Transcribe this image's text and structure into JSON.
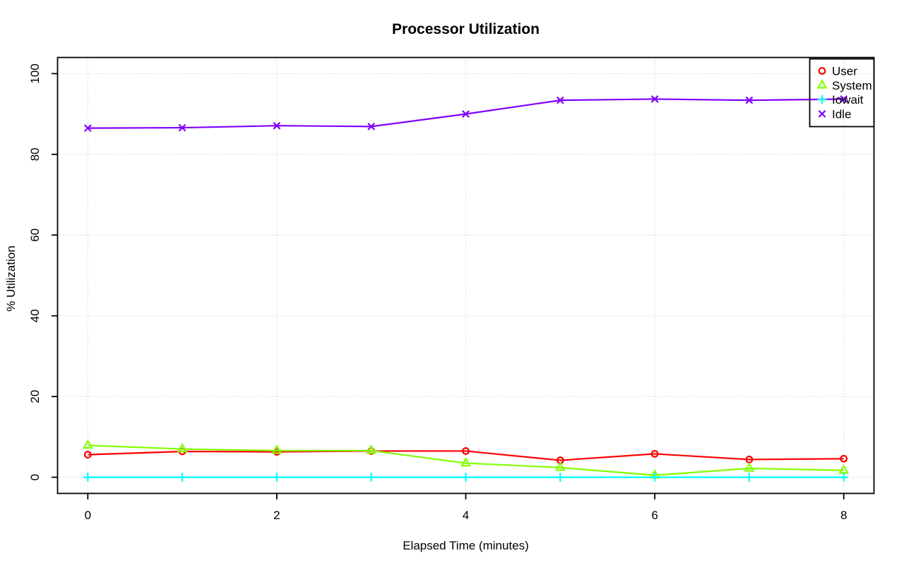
{
  "chart_data": {
    "type": "line",
    "title": "Processor Utilization",
    "xlabel": "Elapsed Time (minutes)",
    "ylabel": "% Utilization",
    "x": [
      0,
      1,
      2,
      3,
      4,
      5,
      6,
      7,
      8
    ],
    "xlim": [
      0,
      8
    ],
    "ylim": [
      0,
      100
    ],
    "xticks": [
      "0",
      "2",
      "4",
      "6",
      "8"
    ],
    "yticks": [
      "0",
      "20",
      "40",
      "60",
      "80",
      "100"
    ],
    "grid": "dotted",
    "legend_position": "top-right",
    "series": [
      {
        "name": "User",
        "color": "#FF0000",
        "marker": "circle",
        "values": [
          5.6,
          6.4,
          6.3,
          6.5,
          6.5,
          4.2,
          5.8,
          4.4,
          4.6
        ]
      },
      {
        "name": "System",
        "color": "#80FF00",
        "marker": "triangle",
        "values": [
          7.9,
          7.0,
          6.6,
          6.6,
          3.5,
          2.4,
          0.5,
          2.2,
          1.7
        ]
      },
      {
        "name": "Iowait",
        "color": "#00FFFF",
        "marker": "plus",
        "values": [
          0,
          0,
          0,
          0,
          0,
          0,
          0,
          0,
          0
        ]
      },
      {
        "name": "Idle",
        "color": "#8000FF",
        "marker": "x",
        "values": [
          86.5,
          86.6,
          87.1,
          86.9,
          90.0,
          93.4,
          93.7,
          93.4,
          93.7
        ]
      }
    ],
    "colors": {
      "grid": "#bdbdbd",
      "axis": "#000000",
      "background": "#ffffff"
    }
  }
}
